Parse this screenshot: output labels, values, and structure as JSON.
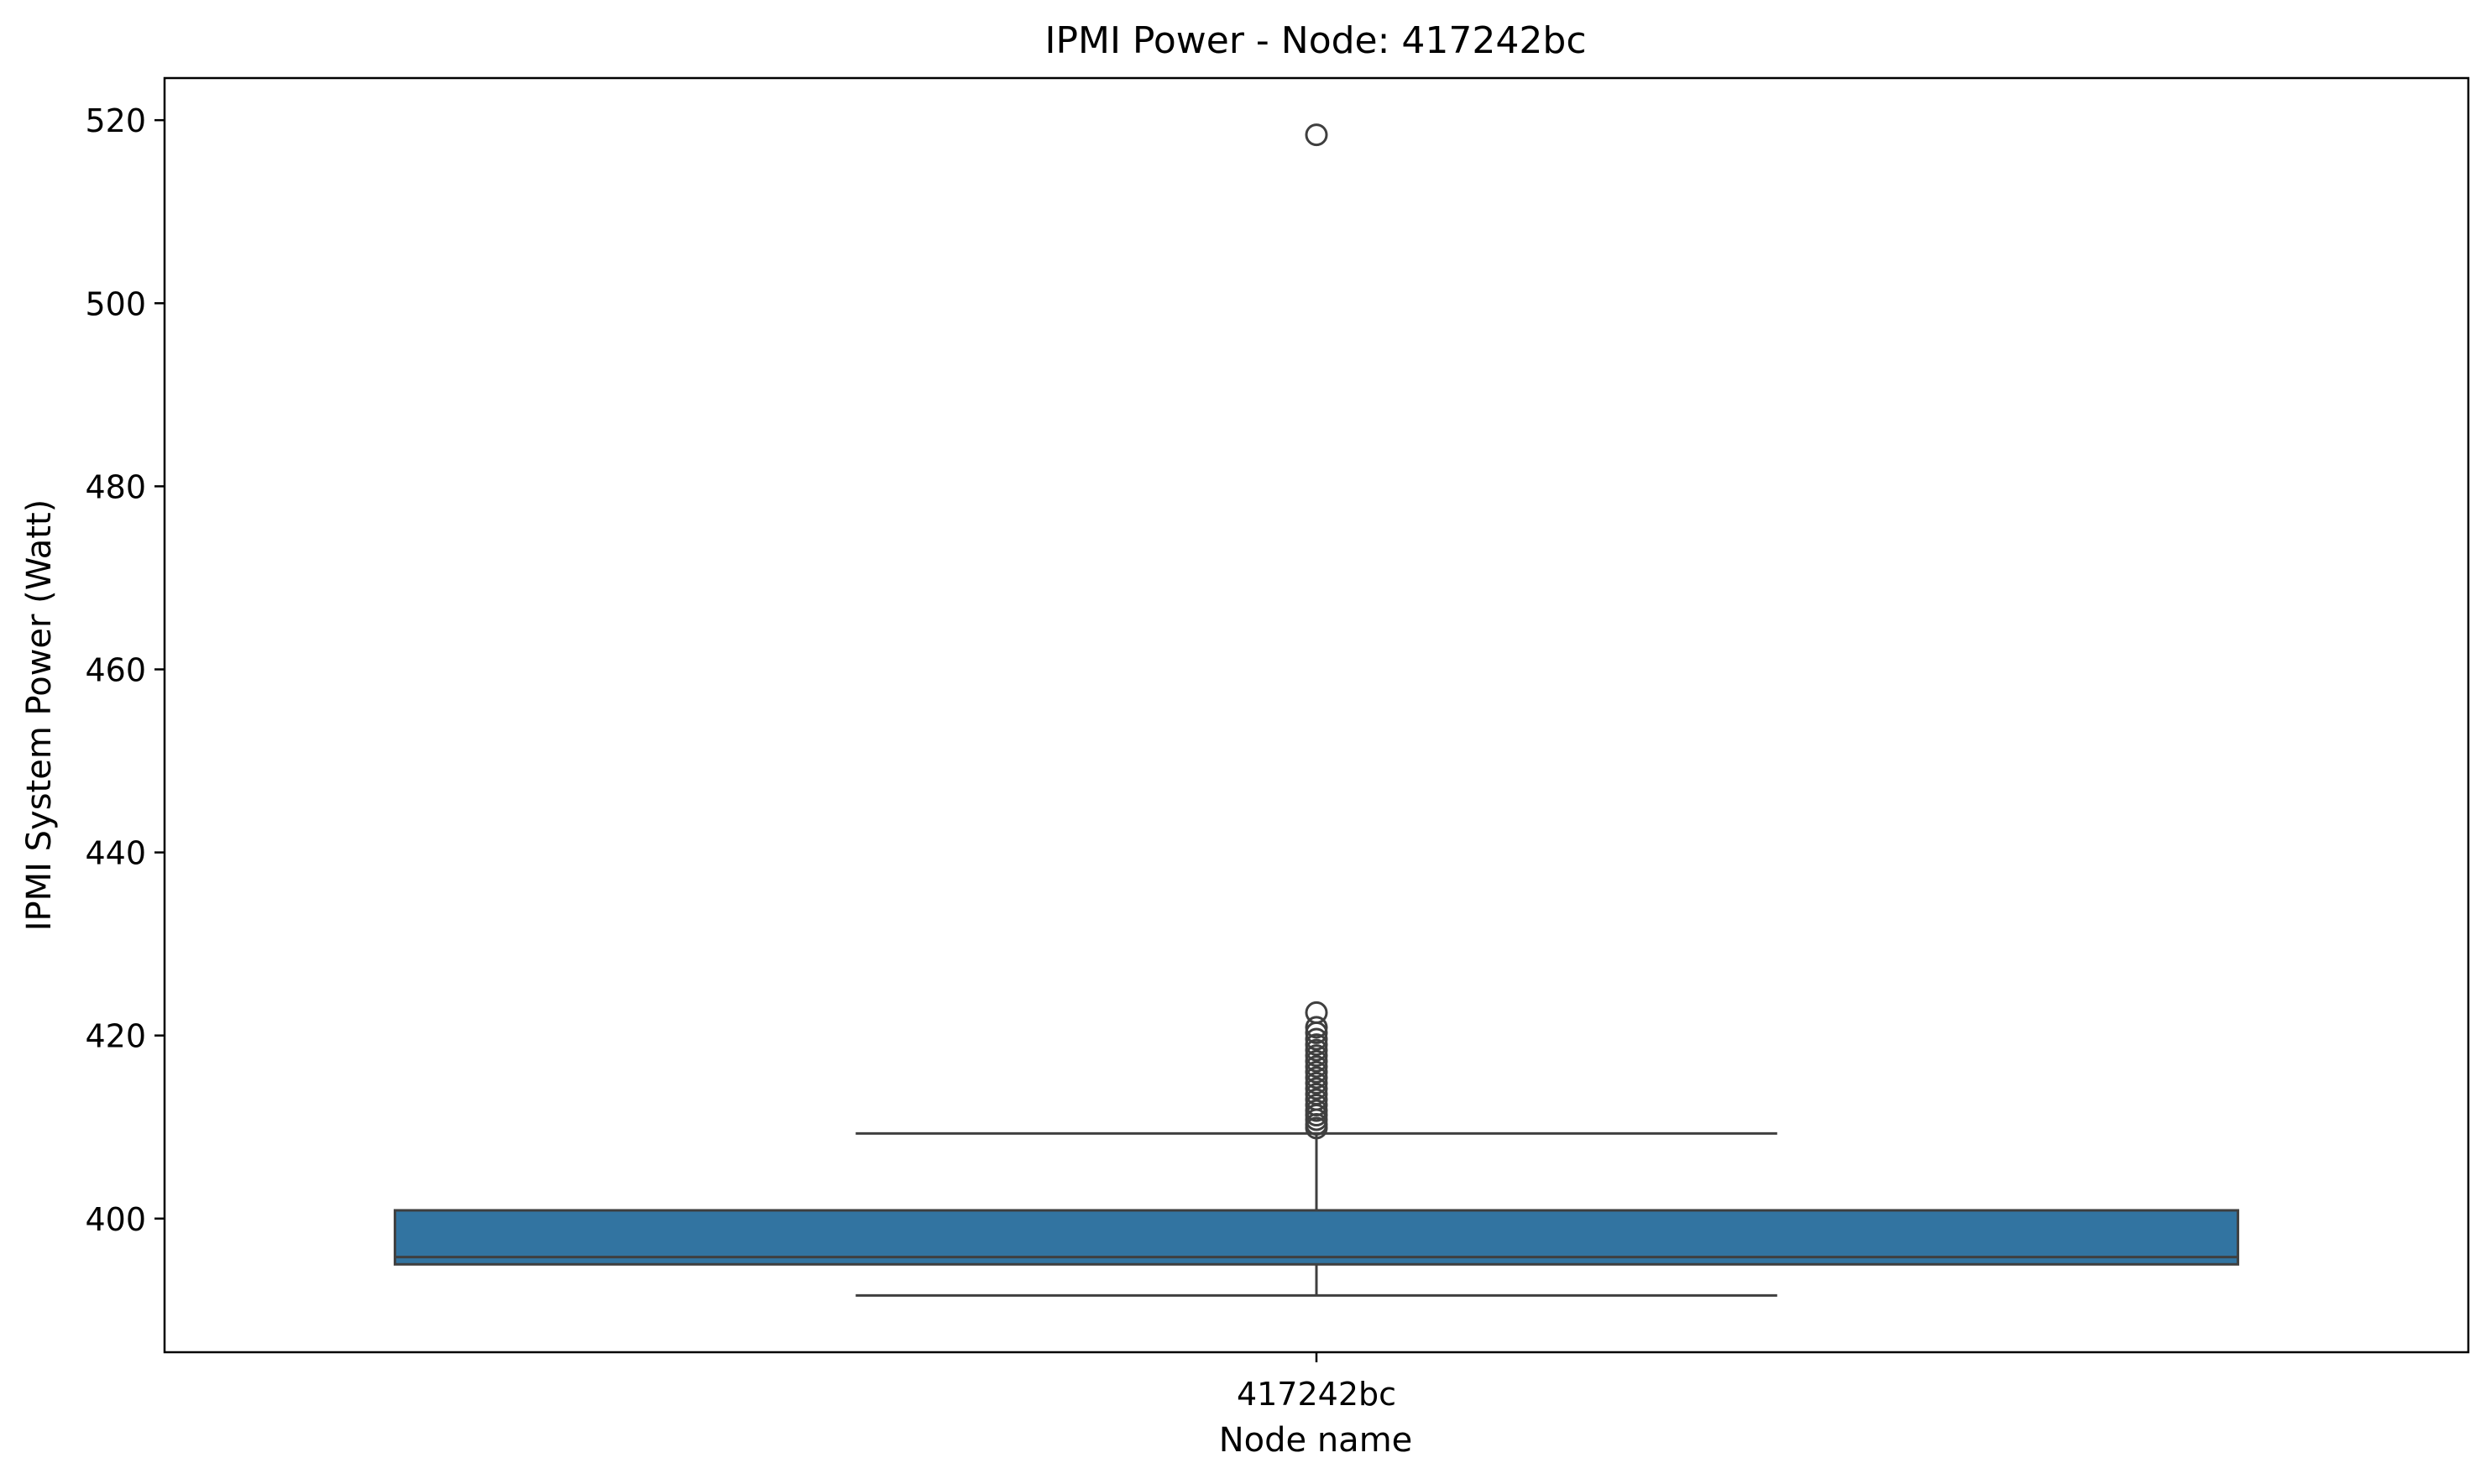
{
  "chart_data": {
    "type": "box",
    "title": "IPMI Power - Node: 417242bc",
    "xlabel": "Node name",
    "ylabel": "IPMI System Power (Watt)",
    "categories": [
      "417242bc"
    ],
    "ylim": [
      385.4,
      524.6
    ],
    "yticks": [
      400,
      420,
      440,
      460,
      480,
      500,
      520
    ],
    "grid": false,
    "legend": "none",
    "box_color": "#3274a1",
    "line_color": "#3f3f3f",
    "boxes": [
      {
        "category": "417242bc",
        "whisker_low": 391.6,
        "q1": 395.0,
        "median": 395.8,
        "q3": 400.9,
        "whisker_high": 409.3,
        "outliers": [
          409.9,
          410.3,
          410.8,
          411.3,
          411.8,
          412.4,
          413.0,
          413.6,
          414.2,
          414.8,
          415.4,
          416.0,
          416.6,
          417.2,
          417.8,
          418.4,
          419.0,
          419.6,
          420.3,
          420.9,
          422.5,
          518.4
        ]
      }
    ]
  }
}
